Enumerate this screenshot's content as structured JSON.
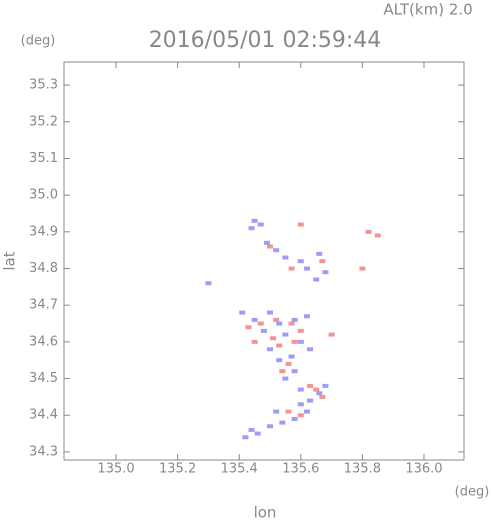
{
  "header": {
    "altitude": "ALT(km) 2.0",
    "y_unit": "(deg)",
    "x_unit": "(deg)"
  },
  "chart_data": {
    "type": "scatter",
    "title": "2016/05/01 02:59:44",
    "x_label": "lon",
    "y_label": "lat",
    "xlim": [
      134.831,
      136.13
    ],
    "ylim": [
      34.278,
      35.363
    ],
    "xticks": [
      {
        "value": 135.0,
        "label": "135.0"
      },
      135.2,
      135.4,
      135.6,
      135.8,
      {
        "value": 136.0,
        "label": "136.0"
      }
    ],
    "yticks": [
      34.3,
      34.4,
      34.5,
      34.6,
      34.7,
      34.8,
      34.9,
      {
        "value": 35.0,
        "label": "35.0"
      },
      35.1,
      35.2,
      35.3
    ],
    "series": [
      {
        "color": "#7b7cf0",
        "x": [
          135.45,
          135.47,
          135.44,
          135.49,
          135.52,
          135.55,
          135.6,
          135.62,
          135.66,
          135.68,
          135.65,
          135.3,
          135.41,
          135.45,
          135.5,
          135.53,
          135.58,
          135.62,
          135.48,
          135.55,
          135.6,
          135.63,
          135.5,
          135.53,
          135.57,
          135.55,
          135.58,
          135.6,
          135.63,
          135.66,
          135.68,
          135.62,
          135.58,
          135.54,
          135.5,
          135.46,
          135.42,
          135.44,
          135.52,
          135.6
        ],
        "values": [
          34.93,
          34.92,
          34.91,
          34.87,
          34.85,
          34.83,
          34.82,
          34.8,
          34.84,
          34.79,
          34.77,
          34.76,
          34.68,
          34.66,
          34.68,
          34.65,
          34.66,
          34.67,
          34.63,
          34.62,
          34.6,
          34.58,
          34.58,
          34.55,
          34.56,
          34.5,
          34.52,
          34.47,
          34.44,
          34.46,
          34.48,
          34.41,
          34.39,
          34.38,
          34.37,
          34.35,
          34.34,
          34.36,
          34.41,
          34.43
        ]
      },
      {
        "color": "#ee7070",
        "x": [
          135.6,
          135.82,
          135.85,
          135.5,
          135.57,
          135.8,
          135.67,
          135.43,
          135.47,
          135.52,
          135.57,
          135.6,
          135.51,
          135.58,
          135.54,
          135.56,
          135.63,
          135.67,
          135.6,
          135.56,
          135.65,
          135.45,
          135.7,
          135.53
        ],
        "values": [
          34.92,
          34.9,
          34.89,
          34.86,
          34.8,
          34.8,
          34.82,
          34.64,
          34.65,
          34.66,
          34.65,
          34.63,
          34.61,
          34.6,
          34.52,
          34.54,
          34.48,
          34.45,
          34.4,
          34.41,
          34.47,
          34.6,
          34.62,
          34.59
        ]
      }
    ]
  }
}
